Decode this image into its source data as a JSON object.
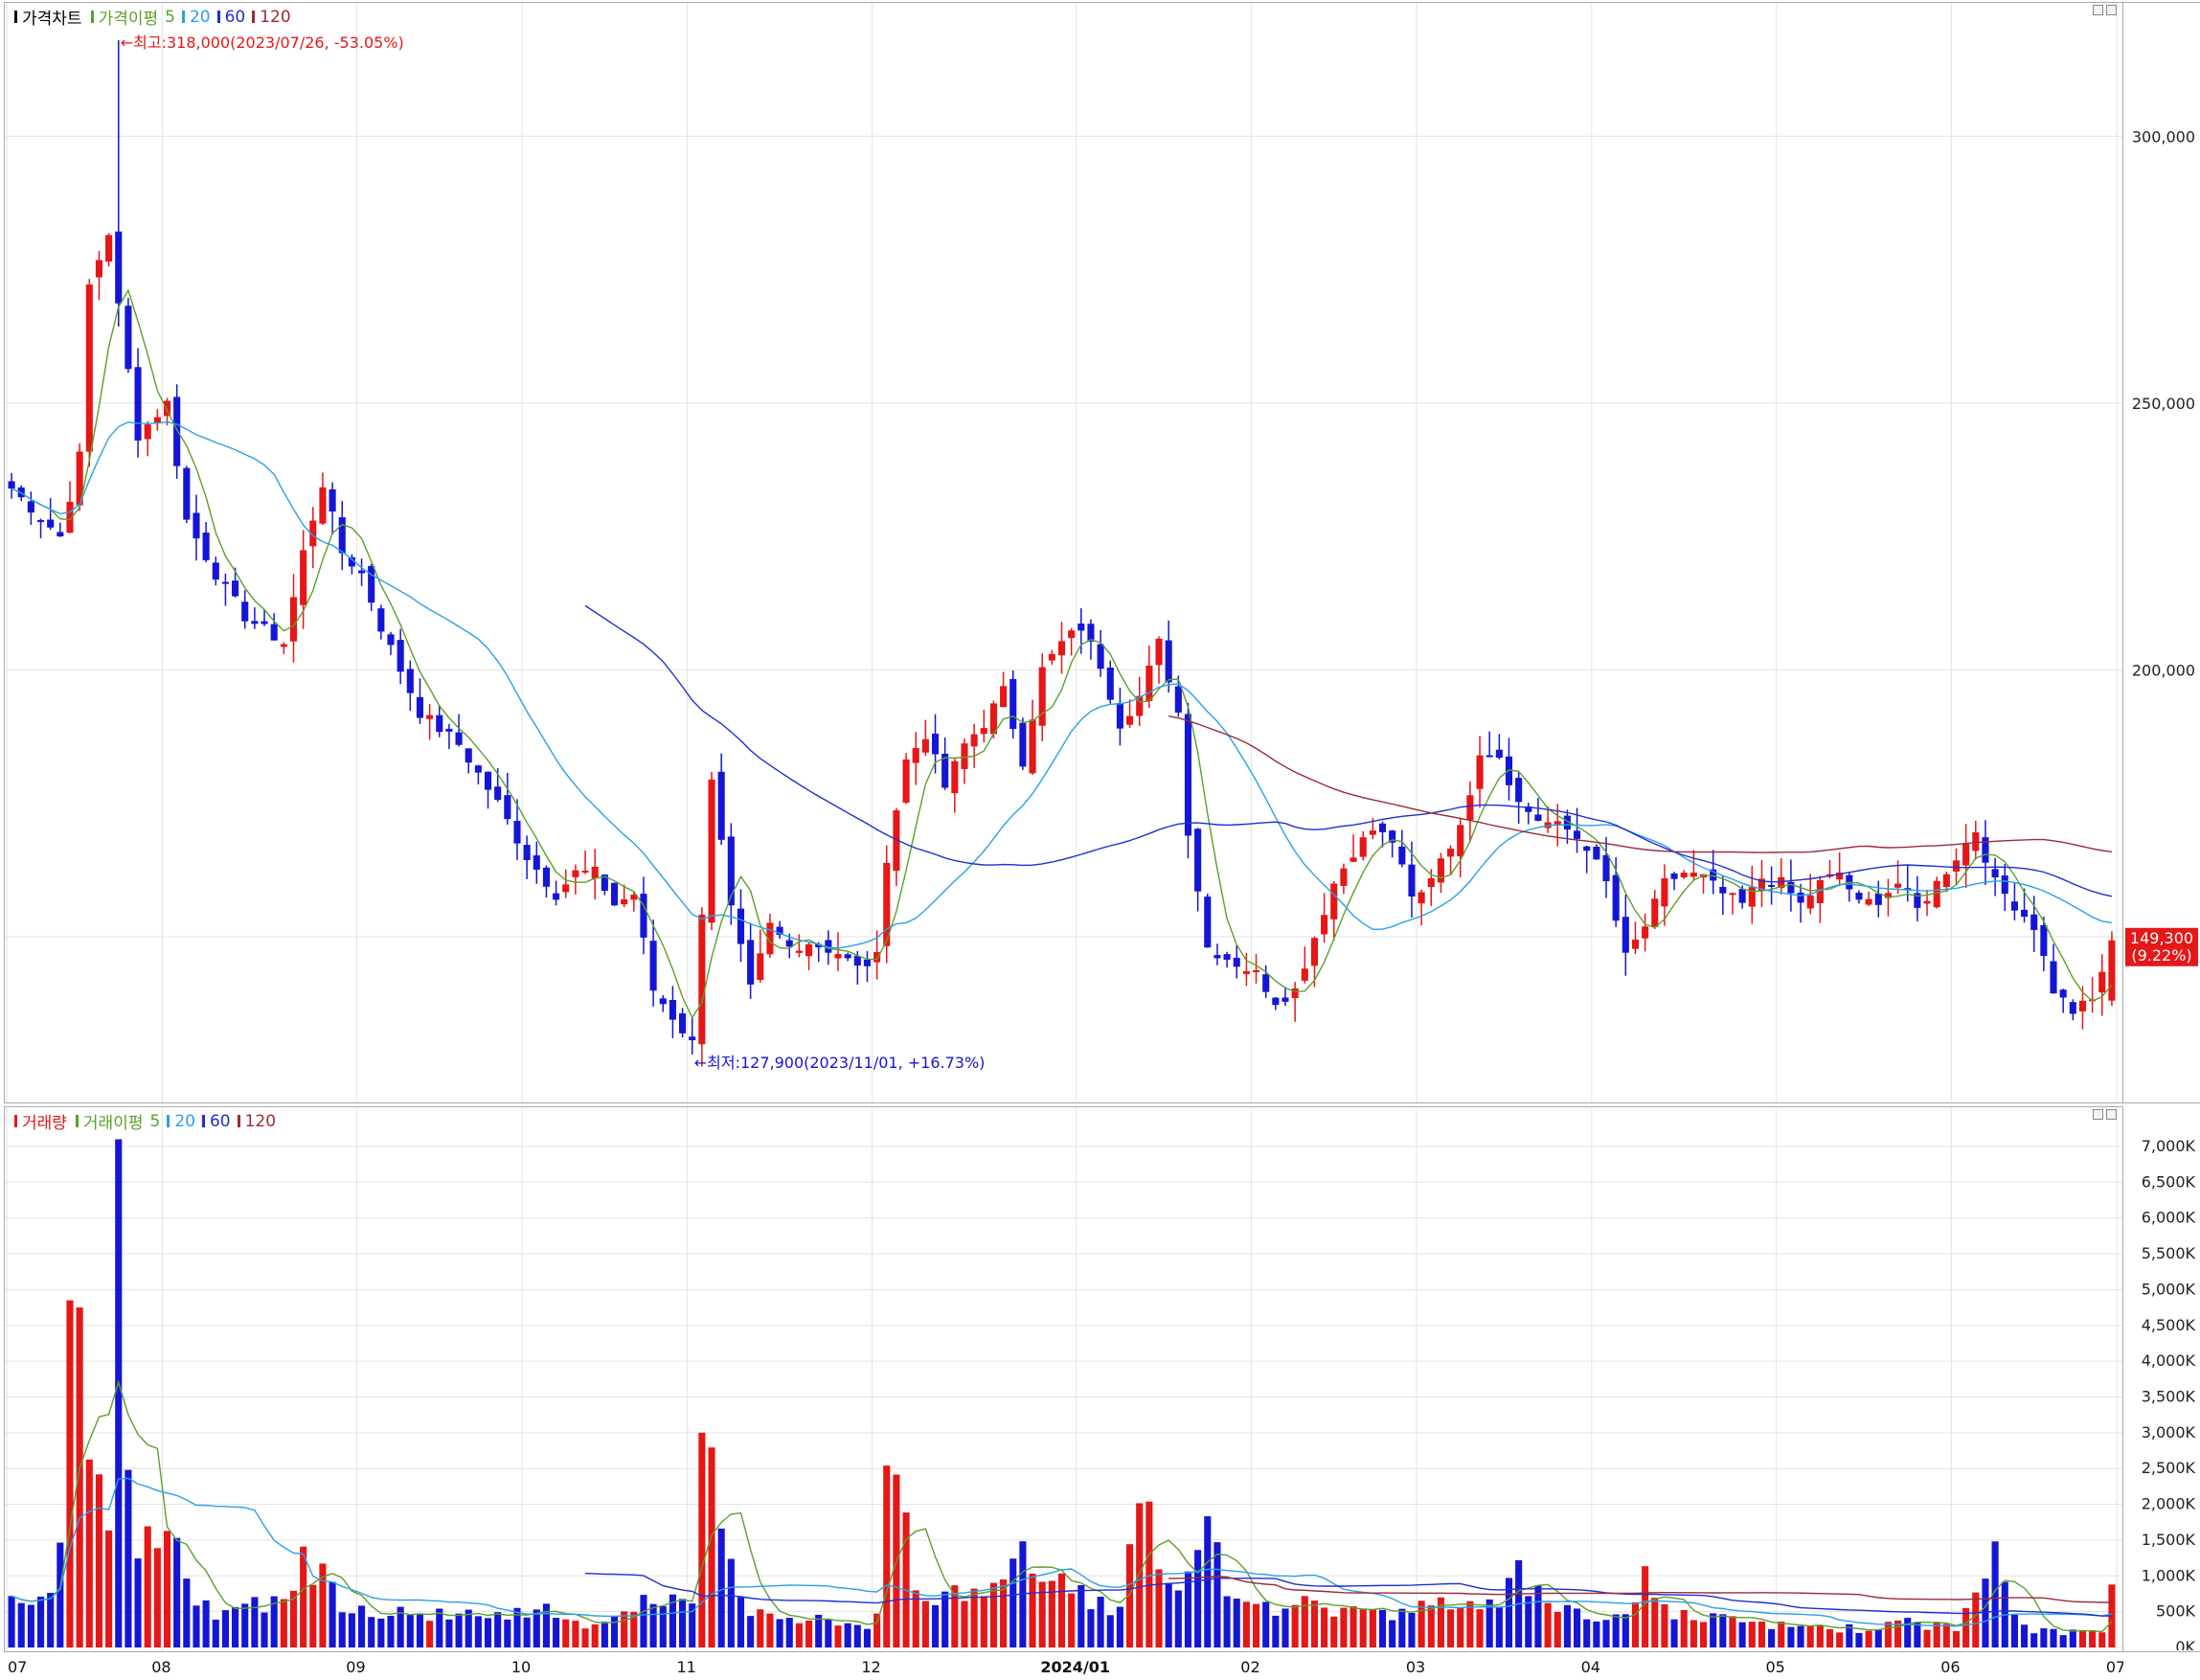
{
  "price_panel": {
    "title": "가격차트",
    "ma_label": "가격이평",
    "ma_periods": [
      "5",
      "20",
      "60",
      "120"
    ],
    "ma_colors": {
      "5": "#5aa02c",
      "20": "#2aa0e6",
      "60": "#1e2fd2",
      "120": "#9b2a3a"
    },
    "high_marker": "←최고:318,000(2023/07/26, -53.05%)",
    "low_marker": "←최저:127,900(2023/11/01, +16.73%)",
    "current_price": "149,300",
    "current_change": "(9.22%)"
  },
  "volume_panel": {
    "title": "거래량",
    "ma_label": "거래이평",
    "ma_periods": [
      "5",
      "20",
      "60",
      "120"
    ]
  },
  "colors": {
    "up": "#e51717",
    "down": "#1515d6",
    "grid": "#e3e3e3"
  },
  "price_axis_ticks": [
    "300,000",
    "250,000",
    "200,000"
  ],
  "volume_axis_ticks": [
    "7,000K",
    "6,500K",
    "6,000K",
    "5,500K",
    "5,000K",
    "4,500K",
    "4,000K",
    "3,500K",
    "3,000K",
    "2,500K",
    "2,000K",
    "1,500K",
    "1,000K",
    "500K",
    "0K"
  ],
  "time_axis_labels": [
    "07",
    "08",
    "09",
    "10",
    "11",
    "12",
    "2024/01",
    "02",
    "03",
    "04",
    "05",
    "06",
    "07"
  ],
  "chart_data": {
    "type": "candlestick",
    "unit_volume": "K",
    "price_range": [
      120000,
      325000
    ],
    "volume_range": [
      0,
      7200
    ],
    "month_index": [
      0,
      16,
      36,
      53,
      70,
      89,
      110,
      128,
      145,
      163,
      182,
      200,
      217
    ],
    "anchors_close": [
      [
        0,
        234000
      ],
      [
        5,
        225000
      ],
      [
        7,
        240000
      ],
      [
        8,
        272000
      ],
      [
        10,
        282000
      ],
      [
        11,
        268000
      ],
      [
        13,
        244000
      ],
      [
        16,
        250000
      ],
      [
        18,
        228000
      ],
      [
        21,
        218000
      ],
      [
        24,
        210000
      ],
      [
        28,
        205000
      ],
      [
        30,
        222000
      ],
      [
        32,
        235000
      ],
      [
        34,
        222000
      ],
      [
        36,
        218000
      ],
      [
        38,
        208000
      ],
      [
        42,
        192000
      ],
      [
        46,
        186000
      ],
      [
        50,
        175000
      ],
      [
        53,
        165000
      ],
      [
        56,
        158000
      ],
      [
        58,
        162000
      ],
      [
        60,
        162000
      ],
      [
        62,
        156000
      ],
      [
        64,
        158000
      ],
      [
        66,
        140000
      ],
      [
        68,
        135000
      ],
      [
        70,
        130000
      ],
      [
        72,
        180000
      ],
      [
        74,
        155000
      ],
      [
        76,
        140000
      ],
      [
        78,
        152000
      ],
      [
        80,
        148000
      ],
      [
        82,
        149000
      ],
      [
        85,
        147000
      ],
      [
        87,
        144000
      ],
      [
        89,
        146000
      ],
      [
        90,
        165000
      ],
      [
        92,
        183000
      ],
      [
        94,
        188000
      ],
      [
        96,
        178000
      ],
      [
        98,
        186000
      ],
      [
        100,
        190000
      ],
      [
        102,
        196000
      ],
      [
        104,
        183000
      ],
      [
        106,
        200000
      ],
      [
        108,
        205000
      ],
      [
        110,
        208000
      ],
      [
        112,
        201000
      ],
      [
        114,
        190000
      ],
      [
        116,
        195000
      ],
      [
        118,
        205000
      ],
      [
        120,
        192000
      ],
      [
        121,
        170000
      ],
      [
        123,
        148000
      ],
      [
        126,
        145000
      ],
      [
        128,
        143000
      ],
      [
        130,
        138000
      ],
      [
        132,
        140000
      ],
      [
        134,
        150000
      ],
      [
        136,
        160000
      ],
      [
        138,
        166000
      ],
      [
        140,
        170000
      ],
      [
        142,
        168000
      ],
      [
        144,
        157000
      ],
      [
        145,
        158000
      ],
      [
        147,
        165000
      ],
      [
        149,
        170000
      ],
      [
        151,
        185000
      ],
      [
        153,
        184000
      ],
      [
        155,
        175000
      ],
      [
        157,
        172000
      ],
      [
        160,
        170000
      ],
      [
        162,
        167000
      ],
      [
        164,
        160000
      ],
      [
        166,
        146000
      ],
      [
        168,
        152000
      ],
      [
        170,
        160000
      ],
      [
        172,
        162000
      ],
      [
        174,
        161000
      ],
      [
        176,
        158000
      ],
      [
        178,
        156000
      ],
      [
        180,
        161000
      ],
      [
        182,
        160000
      ],
      [
        184,
        156000
      ],
      [
        186,
        160000
      ],
      [
        188,
        162000
      ],
      [
        190,
        156000
      ],
      [
        192,
        157000
      ],
      [
        194,
        160000
      ],
      [
        196,
        155000
      ],
      [
        198,
        160000
      ],
      [
        200,
        165000
      ],
      [
        202,
        170000
      ],
      [
        204,
        160000
      ],
      [
        206,
        156000
      ],
      [
        208,
        152000
      ],
      [
        210,
        140000
      ],
      [
        212,
        136000
      ],
      [
        214,
        138000
      ],
      [
        216,
        149300
      ]
    ],
    "anchors_volume": [
      [
        0,
        600
      ],
      [
        2,
        650
      ],
      [
        4,
        800
      ],
      [
        5,
        1800
      ],
      [
        6,
        4850
      ],
      [
        7,
        4750
      ],
      [
        8,
        2200
      ],
      [
        9,
        2100
      ],
      [
        10,
        2000
      ],
      [
        11,
        7100
      ],
      [
        12,
        2050
      ],
      [
        13,
        1400
      ],
      [
        15,
        1350
      ],
      [
        17,
        1450
      ],
      [
        19,
        600
      ],
      [
        22,
        450
      ],
      [
        24,
        700
      ],
      [
        26,
        650
      ],
      [
        28,
        700
      ],
      [
        30,
        1200
      ],
      [
        32,
        1100
      ],
      [
        34,
        650
      ],
      [
        38,
        500
      ],
      [
        42,
        450
      ],
      [
        46,
        500
      ],
      [
        50,
        400
      ],
      [
        53,
        500
      ],
      [
        55,
        650
      ],
      [
        58,
        350
      ],
      [
        60,
        300
      ],
      [
        62,
        500
      ],
      [
        64,
        650
      ],
      [
        66,
        550
      ],
      [
        70,
        650
      ],
      [
        71,
        3000
      ],
      [
        73,
        1800
      ],
      [
        75,
        600
      ],
      [
        80,
        450
      ],
      [
        85,
        350
      ],
      [
        88,
        250
      ],
      [
        89,
        500
      ],
      [
        90,
        2050
      ],
      [
        91,
        1950
      ],
      [
        92,
        1650
      ],
      [
        93,
        1000
      ],
      [
        95,
        600
      ],
      [
        97,
        800
      ],
      [
        100,
        800
      ],
      [
        102,
        1100
      ],
      [
        104,
        1200
      ],
      [
        106,
        950
      ],
      [
        108,
        900
      ],
      [
        110,
        800
      ],
      [
        112,
        600
      ],
      [
        114,
        500
      ],
      [
        116,
        1950
      ],
      [
        117,
        1850
      ],
      [
        118,
        900
      ],
      [
        120,
        800
      ],
      [
        122,
        1100
      ],
      [
        123,
        1600
      ],
      [
        125,
        800
      ],
      [
        128,
        700
      ],
      [
        130,
        500
      ],
      [
        133,
        650
      ],
      [
        136,
        500
      ],
      [
        138,
        600
      ],
      [
        141,
        450
      ],
      [
        144,
        500
      ],
      [
        146,
        600
      ],
      [
        150,
        550
      ],
      [
        153,
        750
      ],
      [
        155,
        1550
      ],
      [
        156,
        950
      ],
      [
        158,
        500
      ],
      [
        162,
        450
      ],
      [
        165,
        400
      ],
      [
        168,
        950
      ],
      [
        170,
        500
      ],
      [
        174,
        400
      ],
      [
        178,
        350
      ],
      [
        182,
        300
      ],
      [
        186,
        300
      ],
      [
        190,
        250
      ],
      [
        194,
        350
      ],
      [
        198,
        300
      ],
      [
        200,
        280
      ],
      [
        204,
        1200
      ],
      [
        206,
        400
      ],
      [
        208,
        250
      ],
      [
        212,
        200
      ],
      [
        215,
        250
      ],
      [
        216,
        800
      ]
    ]
  }
}
